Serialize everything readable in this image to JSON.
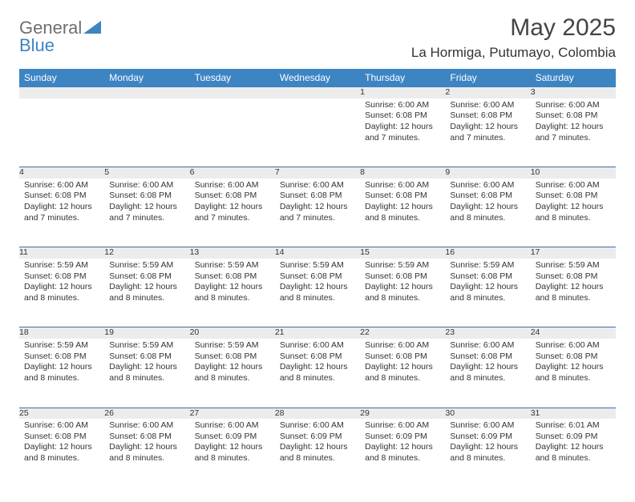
{
  "brand": {
    "part1": "General",
    "part2": "Blue"
  },
  "title": "May 2025",
  "location": "La Hormiga, Putumayo, Colombia",
  "colors": {
    "header_bg": "#3d84c3",
    "daynum_bg": "#ececec",
    "week_border": "#3d6fa3",
    "body_text": "#333333",
    "logo_gray": "#6f6f6f",
    "logo_blue": "#3d84c3"
  },
  "dayHeaders": [
    "Sunday",
    "Monday",
    "Tuesday",
    "Wednesday",
    "Thursday",
    "Friday",
    "Saturday"
  ],
  "weeks": [
    [
      null,
      null,
      null,
      null,
      {
        "n": "1",
        "sunrise": "Sunrise: 6:00 AM",
        "sunset": "Sunset: 6:08 PM",
        "day1": "Daylight: 12 hours",
        "day2": "and 7 minutes."
      },
      {
        "n": "2",
        "sunrise": "Sunrise: 6:00 AM",
        "sunset": "Sunset: 6:08 PM",
        "day1": "Daylight: 12 hours",
        "day2": "and 7 minutes."
      },
      {
        "n": "3",
        "sunrise": "Sunrise: 6:00 AM",
        "sunset": "Sunset: 6:08 PM",
        "day1": "Daylight: 12 hours",
        "day2": "and 7 minutes."
      }
    ],
    [
      {
        "n": "4",
        "sunrise": "Sunrise: 6:00 AM",
        "sunset": "Sunset: 6:08 PM",
        "day1": "Daylight: 12 hours",
        "day2": "and 7 minutes."
      },
      {
        "n": "5",
        "sunrise": "Sunrise: 6:00 AM",
        "sunset": "Sunset: 6:08 PM",
        "day1": "Daylight: 12 hours",
        "day2": "and 7 minutes."
      },
      {
        "n": "6",
        "sunrise": "Sunrise: 6:00 AM",
        "sunset": "Sunset: 6:08 PM",
        "day1": "Daylight: 12 hours",
        "day2": "and 7 minutes."
      },
      {
        "n": "7",
        "sunrise": "Sunrise: 6:00 AM",
        "sunset": "Sunset: 6:08 PM",
        "day1": "Daylight: 12 hours",
        "day2": "and 7 minutes."
      },
      {
        "n": "8",
        "sunrise": "Sunrise: 6:00 AM",
        "sunset": "Sunset: 6:08 PM",
        "day1": "Daylight: 12 hours",
        "day2": "and 8 minutes."
      },
      {
        "n": "9",
        "sunrise": "Sunrise: 6:00 AM",
        "sunset": "Sunset: 6:08 PM",
        "day1": "Daylight: 12 hours",
        "day2": "and 8 minutes."
      },
      {
        "n": "10",
        "sunrise": "Sunrise: 6:00 AM",
        "sunset": "Sunset: 6:08 PM",
        "day1": "Daylight: 12 hours",
        "day2": "and 8 minutes."
      }
    ],
    [
      {
        "n": "11",
        "sunrise": "Sunrise: 5:59 AM",
        "sunset": "Sunset: 6:08 PM",
        "day1": "Daylight: 12 hours",
        "day2": "and 8 minutes."
      },
      {
        "n": "12",
        "sunrise": "Sunrise: 5:59 AM",
        "sunset": "Sunset: 6:08 PM",
        "day1": "Daylight: 12 hours",
        "day2": "and 8 minutes."
      },
      {
        "n": "13",
        "sunrise": "Sunrise: 5:59 AM",
        "sunset": "Sunset: 6:08 PM",
        "day1": "Daylight: 12 hours",
        "day2": "and 8 minutes."
      },
      {
        "n": "14",
        "sunrise": "Sunrise: 5:59 AM",
        "sunset": "Sunset: 6:08 PM",
        "day1": "Daylight: 12 hours",
        "day2": "and 8 minutes."
      },
      {
        "n": "15",
        "sunrise": "Sunrise: 5:59 AM",
        "sunset": "Sunset: 6:08 PM",
        "day1": "Daylight: 12 hours",
        "day2": "and 8 minutes."
      },
      {
        "n": "16",
        "sunrise": "Sunrise: 5:59 AM",
        "sunset": "Sunset: 6:08 PM",
        "day1": "Daylight: 12 hours",
        "day2": "and 8 minutes."
      },
      {
        "n": "17",
        "sunrise": "Sunrise: 5:59 AM",
        "sunset": "Sunset: 6:08 PM",
        "day1": "Daylight: 12 hours",
        "day2": "and 8 minutes."
      }
    ],
    [
      {
        "n": "18",
        "sunrise": "Sunrise: 5:59 AM",
        "sunset": "Sunset: 6:08 PM",
        "day1": "Daylight: 12 hours",
        "day2": "and 8 minutes."
      },
      {
        "n": "19",
        "sunrise": "Sunrise: 5:59 AM",
        "sunset": "Sunset: 6:08 PM",
        "day1": "Daylight: 12 hours",
        "day2": "and 8 minutes."
      },
      {
        "n": "20",
        "sunrise": "Sunrise: 5:59 AM",
        "sunset": "Sunset: 6:08 PM",
        "day1": "Daylight: 12 hours",
        "day2": "and 8 minutes."
      },
      {
        "n": "21",
        "sunrise": "Sunrise: 6:00 AM",
        "sunset": "Sunset: 6:08 PM",
        "day1": "Daylight: 12 hours",
        "day2": "and 8 minutes."
      },
      {
        "n": "22",
        "sunrise": "Sunrise: 6:00 AM",
        "sunset": "Sunset: 6:08 PM",
        "day1": "Daylight: 12 hours",
        "day2": "and 8 minutes."
      },
      {
        "n": "23",
        "sunrise": "Sunrise: 6:00 AM",
        "sunset": "Sunset: 6:08 PM",
        "day1": "Daylight: 12 hours",
        "day2": "and 8 minutes."
      },
      {
        "n": "24",
        "sunrise": "Sunrise: 6:00 AM",
        "sunset": "Sunset: 6:08 PM",
        "day1": "Daylight: 12 hours",
        "day2": "and 8 minutes."
      }
    ],
    [
      {
        "n": "25",
        "sunrise": "Sunrise: 6:00 AM",
        "sunset": "Sunset: 6:08 PM",
        "day1": "Daylight: 12 hours",
        "day2": "and 8 minutes."
      },
      {
        "n": "26",
        "sunrise": "Sunrise: 6:00 AM",
        "sunset": "Sunset: 6:08 PM",
        "day1": "Daylight: 12 hours",
        "day2": "and 8 minutes."
      },
      {
        "n": "27",
        "sunrise": "Sunrise: 6:00 AM",
        "sunset": "Sunset: 6:09 PM",
        "day1": "Daylight: 12 hours",
        "day2": "and 8 minutes."
      },
      {
        "n": "28",
        "sunrise": "Sunrise: 6:00 AM",
        "sunset": "Sunset: 6:09 PM",
        "day1": "Daylight: 12 hours",
        "day2": "and 8 minutes."
      },
      {
        "n": "29",
        "sunrise": "Sunrise: 6:00 AM",
        "sunset": "Sunset: 6:09 PM",
        "day1": "Daylight: 12 hours",
        "day2": "and 8 minutes."
      },
      {
        "n": "30",
        "sunrise": "Sunrise: 6:00 AM",
        "sunset": "Sunset: 6:09 PM",
        "day1": "Daylight: 12 hours",
        "day2": "and 8 minutes."
      },
      {
        "n": "31",
        "sunrise": "Sunrise: 6:01 AM",
        "sunset": "Sunset: 6:09 PM",
        "day1": "Daylight: 12 hours",
        "day2": "and 8 minutes."
      }
    ]
  ]
}
